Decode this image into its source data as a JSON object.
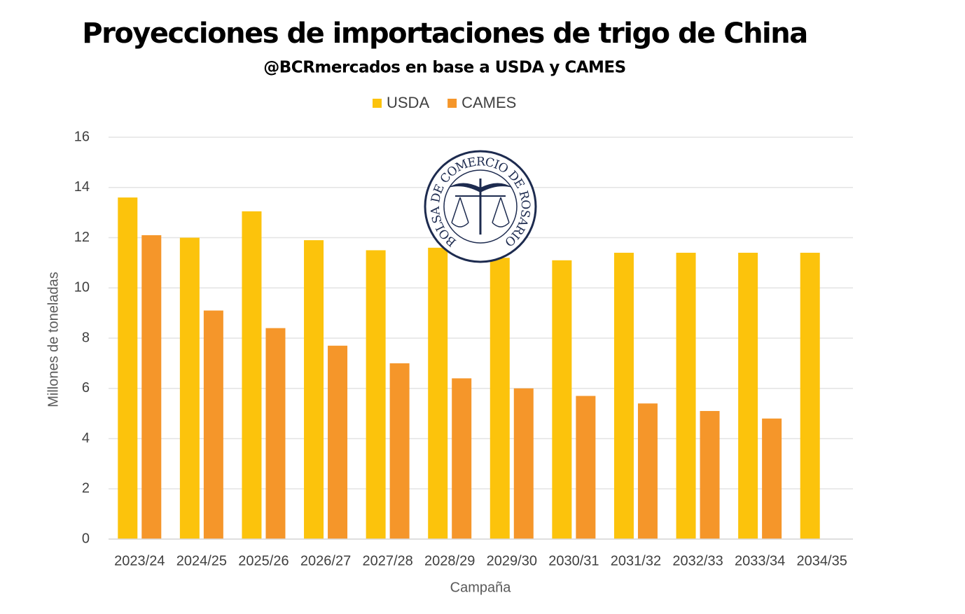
{
  "chart_data": {
    "type": "bar",
    "title": "Proyecciones de importaciones de trigo de China",
    "subtitle": "@BCRmercados en base a USDA y CAMES",
    "logo_text": "BOLSA DE COMERCIO DE ROSARIO",
    "x_label": "Campaña",
    "y_label": "Millones de toneladas",
    "categories": [
      "2023/24",
      "2024/25",
      "2025/26",
      "2026/27",
      "2027/28",
      "2028/29",
      "2029/30",
      "2030/31",
      "2031/32",
      "2032/33",
      "2033/34",
      "2034/35"
    ],
    "series": [
      {
        "name": "USDA",
        "color": "#fcc30c",
        "values": [
          13.6,
          12.0,
          13.05,
          11.9,
          11.5,
          11.6,
          11.2,
          11.1,
          11.4,
          11.4,
          11.4,
          11.4
        ]
      },
      {
        "name": "CAMES",
        "color": "#f5962a",
        "values": [
          12.1,
          9.1,
          8.4,
          7.7,
          7.0,
          6.4,
          6.0,
          5.7,
          5.4,
          5.1,
          4.8,
          null
        ]
      }
    ],
    "ylim": [
      0,
      16
    ],
    "yticks": [
      0,
      2,
      4,
      6,
      8,
      10,
      12,
      14,
      16
    ],
    "grid": true,
    "legend": "top"
  }
}
